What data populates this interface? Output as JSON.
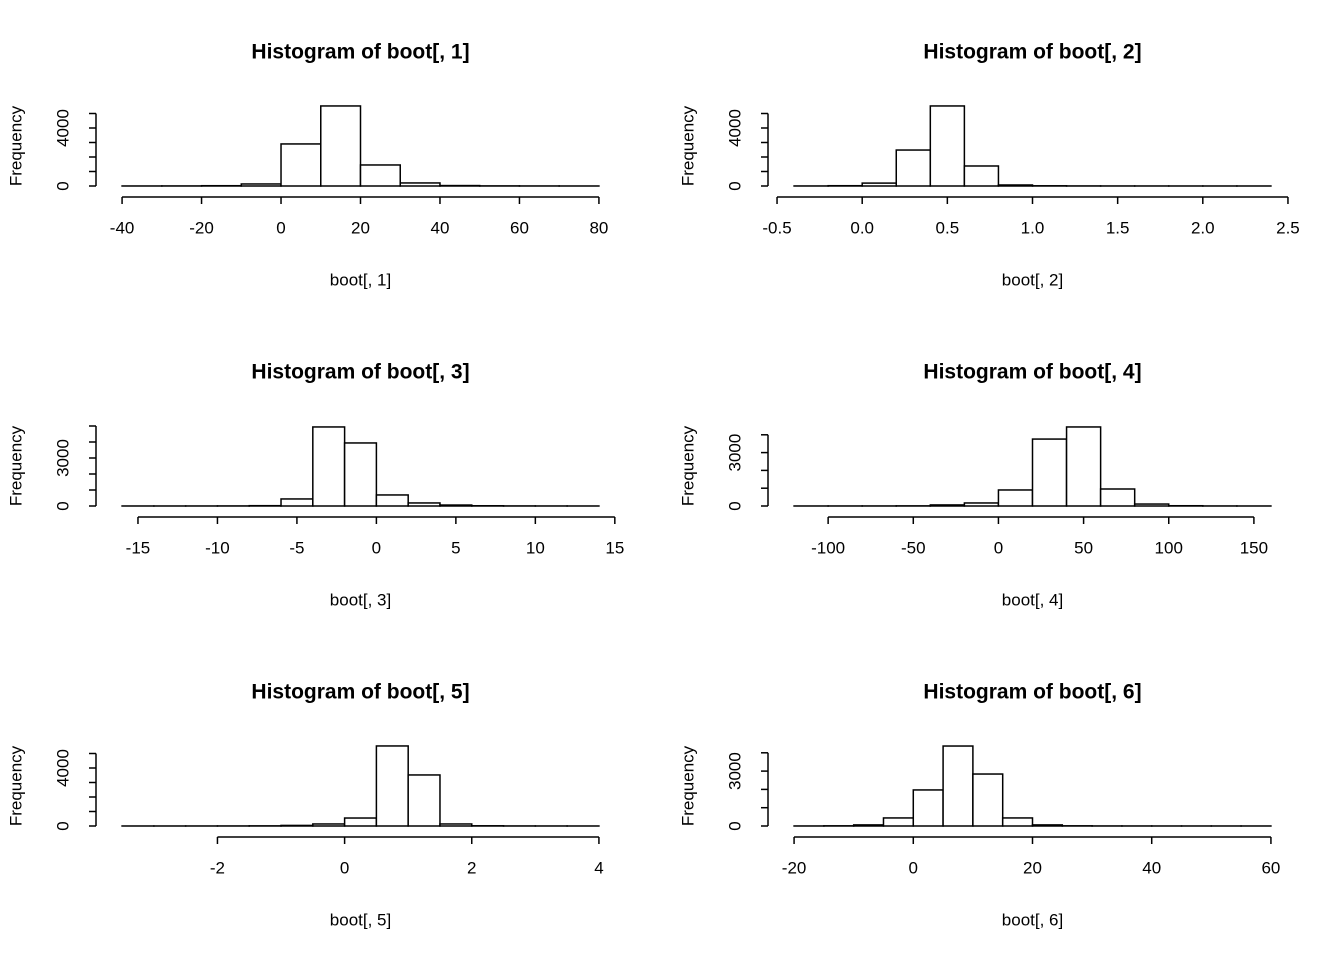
{
  "chart_data": [
    {
      "type": "histogram",
      "title": "Histogram of boot[, 1]",
      "xlabel": "boot[, 1]",
      "ylabel": "Frequency",
      "bins": [
        -40,
        -30,
        -20,
        -10,
        0,
        10,
        20,
        30,
        40,
        50,
        60,
        70,
        80
      ],
      "values": [
        2,
        5,
        20,
        140,
        2900,
        5520,
        1450,
        210,
        30,
        8,
        3,
        1
      ],
      "xlim": [
        -44.8,
        84.8
      ],
      "xticks": [
        -40,
        -20,
        0,
        20,
        40,
        60,
        80
      ],
      "ylim": [
        0,
        6207
      ],
      "yticks": [
        0,
        4000
      ],
      "yminor": [
        1000,
        2000,
        3000,
        5000
      ]
    },
    {
      "type": "histogram",
      "title": "Histogram of boot[, 2]",
      "xlabel": "boot[, 2]",
      "ylabel": "Frequency",
      "bins": [
        -0.4,
        -0.2,
        0,
        0.2,
        0.4,
        0.6,
        0.8,
        1.0,
        1.2,
        1.4,
        1.6,
        1.8,
        2.0,
        2.2,
        2.4
      ],
      "values": [
        3,
        20,
        200,
        2480,
        5520,
        1380,
        70,
        15,
        5,
        3,
        2,
        1,
        1,
        1
      ],
      "xlim": [
        -0.512,
        2.512
      ],
      "xticks": [
        -0.5,
        {
          "value": 0,
          "label": "0.0"
        },
        0.5,
        {
          "value": 1,
          "label": "1.0"
        },
        1.5,
        {
          "value": 2,
          "label": "2.0"
        },
        2.5
      ],
      "ylim": [
        0,
        6207
      ],
      "yticks": [
        0,
        4000
      ],
      "yminor": [
        1000,
        2000,
        3000,
        5000
      ]
    },
    {
      "type": "histogram",
      "title": "Histogram of boot[, 3]",
      "xlabel": "boot[, 3]",
      "ylabel": "Frequency",
      "bins": [
        -16,
        -14,
        -12,
        -10,
        -8,
        -6,
        -4,
        -2,
        0,
        2,
        4,
        6,
        8,
        10,
        12,
        14
      ],
      "values": [
        1,
        1,
        2,
        5,
        20,
        440,
        4940,
        3940,
        690,
        190,
        60,
        15,
        5,
        2,
        1
      ],
      "xlim": [
        -17.2,
        15.2
      ],
      "xticks": [
        -15,
        -10,
        -5,
        0,
        5,
        10,
        15
      ],
      "ylim": [
        0,
        5625
      ],
      "yticks": [
        0,
        3000
      ],
      "yminor": [
        1000,
        2000,
        4000,
        5000
      ]
    },
    {
      "type": "histogram",
      "title": "Histogram of boot[, 4]",
      "xlabel": "boot[, 4]",
      "ylabel": "Frequency",
      "bins": [
        -120,
        -100,
        -80,
        -60,
        -40,
        -20,
        0,
        20,
        40,
        60,
        80,
        100,
        120,
        140,
        160
      ],
      "values": [
        1,
        2,
        3,
        8,
        60,
        170,
        900,
        3760,
        4440,
        955,
        110,
        15,
        3,
        1
      ],
      "xlim": [
        -131.2,
        171.2
      ],
      "xticks": [
        -100,
        -50,
        0,
        50,
        100,
        150
      ],
      "ylim": [
        0,
        5056
      ],
      "yticks": [
        0,
        3000
      ],
      "yminor": [
        1000,
        2000,
        4000
      ]
    },
    {
      "type": "histogram",
      "title": "Histogram of boot[, 5]",
      "xlabel": "boot[, 5]",
      "ylabel": "Frequency",
      "bins": [
        -3.5,
        -3.0,
        -2.5,
        -2.0,
        -1.5,
        -1.0,
        -0.5,
        0,
        0.5,
        1.0,
        1.5,
        2.0,
        2.5,
        3.0,
        3.5,
        4.0
      ],
      "values": [
        1,
        1,
        2,
        4,
        10,
        40,
        140,
        550,
        5520,
        3520,
        140,
        15,
        4,
        2,
        1
      ],
      "xlim": [
        -3.8,
        4.3
      ],
      "xticks": [
        -2,
        0,
        2,
        4
      ],
      "ylim": [
        0,
        6207
      ],
      "yticks": [
        0,
        4000
      ],
      "yminor": [
        1000,
        2000,
        3000,
        5000
      ]
    },
    {
      "type": "histogram",
      "title": "Histogram of boot[, 6]",
      "xlabel": "boot[, 6]",
      "ylabel": "Frequency",
      "bins": [
        -20,
        -15,
        -10,
        -5,
        0,
        5,
        10,
        15,
        20,
        25,
        30,
        35,
        40,
        45,
        50,
        55,
        60
      ],
      "values": [
        2,
        10,
        60,
        440,
        1970,
        4370,
        2840,
        440,
        60,
        10,
        3,
        2,
        1,
        1,
        1,
        1
      ],
      "xlim": [
        -23.2,
        63.2
      ],
      "xticks": [
        -20,
        0,
        20,
        40,
        60
      ],
      "ylim": [
        0,
        4918
      ],
      "yticks": [
        0,
        3000
      ],
      "yminor": [
        1000,
        2000,
        4000
      ]
    }
  ]
}
